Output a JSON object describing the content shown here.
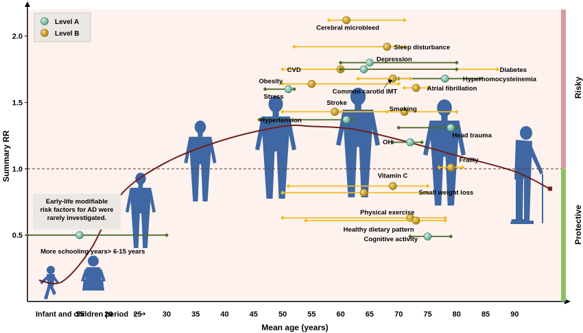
{
  "chart_data": {
    "type": "scatter",
    "xlabel": "Mean age (years)",
    "ylabel": "Summary RR",
    "x_prefix_label": "Infant and children period",
    "x_prefix_arrow": "⟶",
    "xticks": [
      15,
      20,
      25,
      30,
      35,
      40,
      45,
      50,
      55,
      60,
      65,
      70,
      75,
      80,
      85,
      90
    ],
    "yticks": [
      "0.5",
      "1.0",
      "1.5",
      "2.0"
    ],
    "xlim": [
      6,
      98
    ],
    "ylim": [
      0,
      2.2
    ],
    "reference_line": 1.0,
    "legend": {
      "placement": "top-left",
      "items": [
        {
          "label": "Level A",
          "color": "#6db39b"
        },
        {
          "label": "Level B",
          "color": "#d4a017"
        }
      ]
    },
    "side_labels": {
      "risky": "Risky",
      "protective": "Protective"
    },
    "callout": "Early-life modifiable risk factors for AD were rarely investigated.",
    "curve_points": [
      [
        8,
        0.16
      ],
      [
        12,
        0.15
      ],
      [
        17,
        0.4
      ],
      [
        22,
        0.8
      ],
      [
        30,
        1.05
      ],
      [
        40,
        1.22
      ],
      [
        50,
        1.32
      ],
      [
        55,
        1.32
      ],
      [
        62,
        1.3
      ],
      [
        70,
        1.22
      ],
      [
        80,
        1.1
      ],
      [
        90,
        0.98
      ],
      [
        96,
        0.85
      ]
    ],
    "series": [
      {
        "name": "Cerebral microbleed",
        "level": "B",
        "x": 61,
        "y": 2.12,
        "range": [
          58,
          71
        ]
      },
      {
        "name": "Sleep disturbance",
        "level": "B",
        "x": 68,
        "y": 1.92,
        "range": [
          52,
          71
        ]
      },
      {
        "name": "Depression",
        "level": "A",
        "x": 65,
        "y": 1.8,
        "range": [
          60,
          80
        ]
      },
      {
        "name": "CVD",
        "level": "B",
        "x": 60,
        "y": 1.75,
        "range": [
          50,
          87
        ]
      },
      {
        "name": "Diabetes",
        "level": "A",
        "x": 64,
        "y": 1.75,
        "range": [
          60,
          80
        ]
      },
      {
        "name": "Hyperhomocysteinemia",
        "level": "A",
        "x": 78,
        "y": 1.68,
        "range": [
          70,
          84
        ]
      },
      {
        "name": "Common carotid IMT",
        "level": "B",
        "x": 69,
        "y": 1.68,
        "range": [
          63,
          72
        ]
      },
      {
        "name": "Obesity",
        "level": "B",
        "x": 55,
        "y": 1.64,
        "range": [
          50,
          70
        ]
      },
      {
        "name": "Atrial fibrillation",
        "level": "B",
        "x": 73,
        "y": 1.61,
        "range": [
          71,
          75
        ]
      },
      {
        "name": "Stress",
        "level": "A",
        "x": 51,
        "y": 1.6,
        "range": [
          47,
          52
        ]
      },
      {
        "name": "Stroke",
        "level": "B",
        "x": 59,
        "y": 1.43,
        "range": [
          50,
          68
        ]
      },
      {
        "name": "Smoking",
        "level": "B",
        "x": 71,
        "y": 1.43,
        "range": [
          60,
          80
        ]
      },
      {
        "name": "Hypertension",
        "level": "A",
        "x": 61,
        "y": 1.37,
        "range": [
          46,
          62
        ]
      },
      {
        "name": "Head trauma",
        "level": "A",
        "x": 79,
        "y": 1.31,
        "range": [
          70,
          80
        ]
      },
      {
        "name": "OH",
        "level": "A",
        "x": 72,
        "y": 1.2,
        "range": [
          69,
          74
        ]
      },
      {
        "name": "Frailty",
        "level": "B",
        "x": 79,
        "y": 1.01,
        "range": [
          77,
          81
        ]
      },
      {
        "name": "Vitamin C",
        "level": "B",
        "x": 69,
        "y": 0.87,
        "range": [
          51,
          75
        ]
      },
      {
        "name": "Small weight loss",
        "level": "B",
        "x": 64,
        "y": 0.82,
        "range": [
          50,
          75
        ]
      },
      {
        "name": "Physical exercise",
        "level": "B",
        "x": 72,
        "y": 0.63,
        "range": [
          50,
          78
        ]
      },
      {
        "name": "Healthy dietary pattern",
        "level": "B",
        "x": 73,
        "y": 0.61,
        "range": [
          54,
          78
        ]
      },
      {
        "name": "More schooling years> 6-15 years",
        "level": "A",
        "x": 15,
        "y": 0.5,
        "range": [
          6,
          30
        ]
      },
      {
        "name": "Cognitive activity",
        "level": "A",
        "x": 75,
        "y": 0.49,
        "range": [
          72,
          79
        ]
      }
    ]
  }
}
